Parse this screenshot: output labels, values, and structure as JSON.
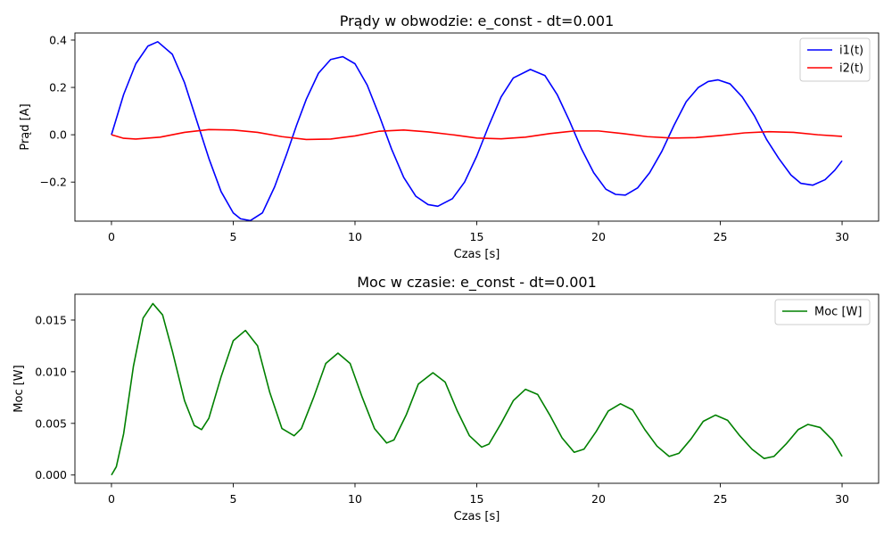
{
  "chart_data": [
    {
      "type": "line",
      "title": "Prądy w obwodzie: e_const - dt=0.001",
      "xlabel": "Czas [s]",
      "ylabel": "Prąd [A]",
      "xlim": [
        -1.5,
        31.5
      ],
      "ylim": [
        -0.365,
        0.43
      ],
      "x_ticks": [
        0,
        5,
        10,
        15,
        20,
        25,
        30
      ],
      "x_tick_labels": [
        "0",
        "5",
        "10",
        "15",
        "20",
        "25",
        "30"
      ],
      "y_ticks": [
        -0.2,
        0.0,
        0.2,
        0.4
      ],
      "y_tick_labels": [
        "−0.2",
        "0.0",
        "0.2",
        "0.4"
      ],
      "grid": false,
      "legend_position": "top-right",
      "series": [
        {
          "name": "i1(t)",
          "color": "#0000ff",
          "x": [
            0,
            0.5,
            1,
            1.5,
            1.9,
            2.5,
            3,
            3.5,
            4,
            4.5,
            5,
            5.3,
            5.7,
            6.2,
            6.7,
            7.2,
            7.6,
            8,
            8.5,
            9,
            9.5,
            10,
            10.5,
            11,
            11.5,
            12,
            12.5,
            13,
            13.4,
            14,
            14.5,
            15,
            15.5,
            16,
            16.5,
            17.2,
            17.8,
            18.3,
            18.8,
            19.3,
            19.8,
            20.3,
            20.7,
            21.1,
            21.6,
            22.1,
            22.6,
            23.1,
            23.6,
            24.1,
            24.5,
            24.9,
            25.4,
            25.9,
            26.4,
            26.9,
            27.4,
            27.9,
            28.3,
            28.8,
            29.3,
            29.7,
            30
          ],
          "values": [
            0.0,
            0.17,
            0.3,
            0.375,
            0.393,
            0.34,
            0.22,
            0.06,
            -0.1,
            -0.24,
            -0.33,
            -0.355,
            -0.363,
            -0.33,
            -0.22,
            -0.08,
            0.04,
            0.15,
            0.26,
            0.318,
            0.33,
            0.3,
            0.21,
            0.08,
            -0.06,
            -0.18,
            -0.26,
            -0.295,
            -0.302,
            -0.27,
            -0.2,
            -0.09,
            0.04,
            0.16,
            0.24,
            0.276,
            0.25,
            0.17,
            0.06,
            -0.06,
            -0.16,
            -0.23,
            -0.252,
            -0.255,
            -0.225,
            -0.16,
            -0.07,
            0.04,
            0.14,
            0.2,
            0.225,
            0.232,
            0.215,
            0.16,
            0.08,
            -0.02,
            -0.1,
            -0.17,
            -0.205,
            -0.213,
            -0.19,
            -0.15,
            -0.11
          ]
        },
        {
          "name": "i2(t)",
          "color": "#ff0000",
          "x": [
            0,
            0.5,
            1,
            2,
            3,
            4,
            5,
            6,
            7,
            8,
            9,
            10,
            11,
            12,
            13,
            14,
            15,
            16,
            17,
            18,
            19,
            20,
            21,
            22,
            23,
            24,
            25,
            26,
            27,
            28,
            29,
            30
          ],
          "values": [
            0.0,
            -0.015,
            -0.018,
            -0.01,
            0.01,
            0.022,
            0.02,
            0.01,
            -0.008,
            -0.02,
            -0.018,
            -0.005,
            0.015,
            0.02,
            0.012,
            0.0,
            -0.014,
            -0.017,
            -0.01,
            0.005,
            0.016,
            0.016,
            0.005,
            -0.008,
            -0.014,
            -0.012,
            -0.003,
            0.008,
            0.013,
            0.01,
            0.0,
            -0.007
          ]
        }
      ]
    },
    {
      "type": "line",
      "title": "Moc w czasie: e_const - dt=0.001",
      "xlabel": "Czas [s]",
      "ylabel": "Moc [W]",
      "xlim": [
        -1.5,
        31.5
      ],
      "ylim": [
        -0.0008,
        0.0175
      ],
      "x_ticks": [
        0,
        5,
        10,
        15,
        20,
        25,
        30
      ],
      "x_tick_labels": [
        "0",
        "5",
        "10",
        "15",
        "20",
        "25",
        "30"
      ],
      "y_ticks": [
        0.0,
        0.005,
        0.01,
        0.015
      ],
      "y_tick_labels": [
        "0.000",
        "0.005",
        "0.010",
        "0.015"
      ],
      "grid": false,
      "legend_position": "top-right",
      "series": [
        {
          "name": "Moc [W]",
          "color": "#008000",
          "x": [
            0,
            0.2,
            0.5,
            0.9,
            1.3,
            1.7,
            2.1,
            2.5,
            3.0,
            3.4,
            3.7,
            4.0,
            4.5,
            5.0,
            5.5,
            6.0,
            6.5,
            7.0,
            7.5,
            7.8,
            8.3,
            8.8,
            9.3,
            9.8,
            10.3,
            10.8,
            11.3,
            11.6,
            12.1,
            12.6,
            13.2,
            13.7,
            14.2,
            14.7,
            15.2,
            15.5,
            16.0,
            16.5,
            17.0,
            17.5,
            18.0,
            18.5,
            19.0,
            19.4,
            19.9,
            20.4,
            20.9,
            21.4,
            21.9,
            22.4,
            22.9,
            23.3,
            23.8,
            24.3,
            24.8,
            25.3,
            25.8,
            26.3,
            26.8,
            27.2,
            27.7,
            28.2,
            28.6,
            29.1,
            29.6,
            30.0
          ],
          "values": [
            0.0,
            0.0008,
            0.004,
            0.0105,
            0.0152,
            0.0166,
            0.0155,
            0.012,
            0.0072,
            0.0048,
            0.0044,
            0.0055,
            0.0095,
            0.013,
            0.014,
            0.0125,
            0.008,
            0.0045,
            0.0038,
            0.0045,
            0.0075,
            0.0108,
            0.0118,
            0.0108,
            0.0075,
            0.0045,
            0.0031,
            0.0034,
            0.0058,
            0.0088,
            0.0099,
            0.009,
            0.0062,
            0.0038,
            0.0027,
            0.003,
            0.005,
            0.0072,
            0.0083,
            0.0078,
            0.0058,
            0.0036,
            0.0022,
            0.0025,
            0.0042,
            0.0062,
            0.0069,
            0.0063,
            0.0044,
            0.0028,
            0.0018,
            0.0021,
            0.0035,
            0.0052,
            0.0058,
            0.0053,
            0.0038,
            0.0025,
            0.0016,
            0.0018,
            0.003,
            0.0044,
            0.0049,
            0.0046,
            0.0034,
            0.0018
          ]
        }
      ]
    }
  ]
}
